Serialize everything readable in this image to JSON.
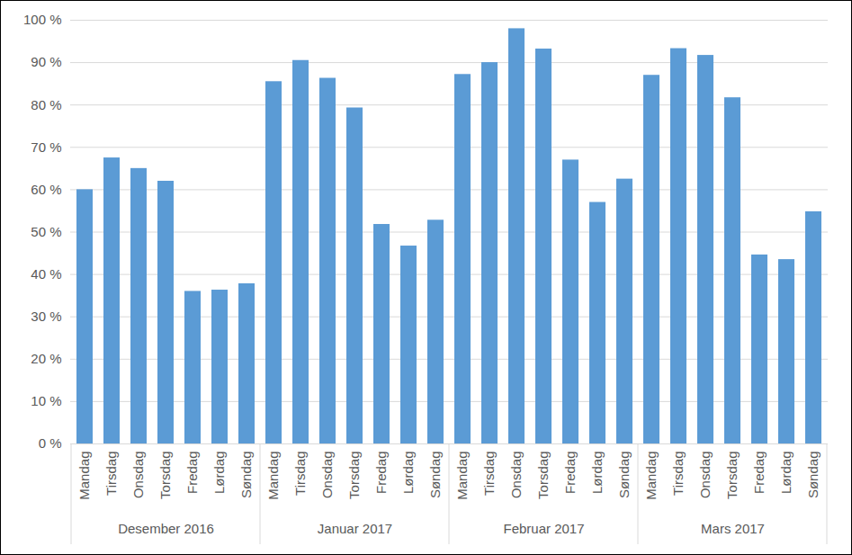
{
  "chart_data": {
    "type": "bar",
    "categories": [
      "Mandag",
      "Tirsdag",
      "Onsdag",
      "Torsdag",
      "Fredag",
      "Lørdag",
      "Søndag",
      "Mandag",
      "Tirsdag",
      "Onsdag",
      "Torsdag",
      "Fredag",
      "Lørdag",
      "Søndag",
      "Mandag",
      "Tirsdag",
      "Onsdag",
      "Torsdag",
      "Fredag",
      "Lørdag",
      "Søndag",
      "Mandag",
      "Tirsdag",
      "Onsdag",
      "Torsdag",
      "Fredag",
      "Lørdag",
      "Søndag"
    ],
    "groups": [
      "Desember 2016",
      "Januar 2017",
      "Februar 2017",
      "Mars 2017"
    ],
    "values": [
      60,
      67.5,
      65,
      62,
      36,
      36.3,
      37.8,
      85.5,
      90.5,
      86.3,
      79.3,
      51.8,
      46.7,
      52.8,
      87.2,
      90,
      98,
      93.2,
      67,
      57,
      62.5,
      87,
      93.3,
      91.7,
      81.7,
      44.6,
      43.5,
      54.8
    ],
    "color": "#5b9bd5",
    "ylim": [
      0,
      100
    ],
    "yticks": [
      {
        "value": 0,
        "label": "0 %"
      },
      {
        "value": 10,
        "label": "10 %"
      },
      {
        "value": 20,
        "label": "20 %"
      },
      {
        "value": 30,
        "label": "30 %"
      },
      {
        "value": 40,
        "label": "40 %"
      },
      {
        "value": 50,
        "label": "50 %"
      },
      {
        "value": 60,
        "label": "60 %"
      },
      {
        "value": 70,
        "label": "70 %"
      },
      {
        "value": 80,
        "label": "80 %"
      },
      {
        "value": 90,
        "label": "90 %"
      },
      {
        "value": 100,
        "label": "100 %"
      }
    ],
    "grid": true
  }
}
